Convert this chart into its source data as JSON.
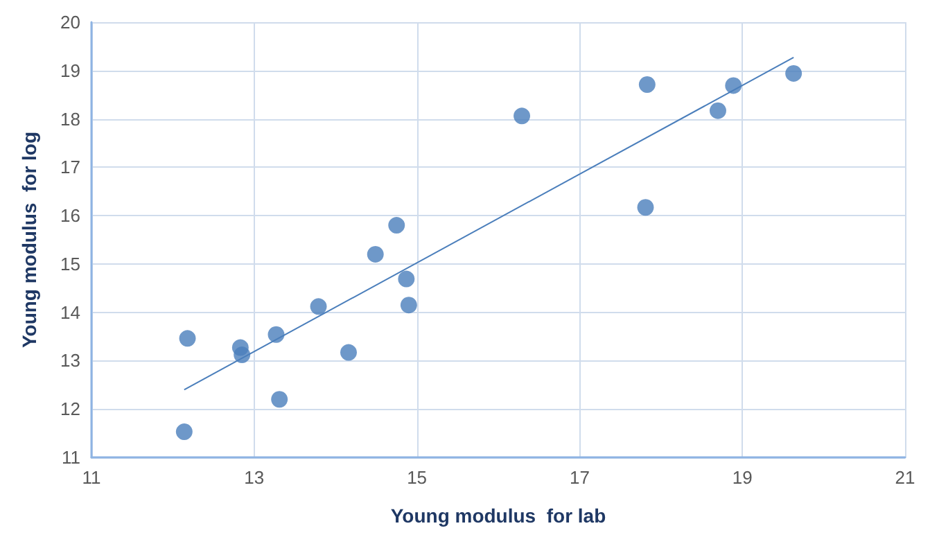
{
  "chart_data": {
    "type": "scatter",
    "xlabel": "Young modulus  for lab",
    "ylabel": "Young modulus  for log",
    "xlim": [
      11,
      21
    ],
    "xticks": [
      11,
      13,
      15,
      17,
      19,
      21
    ],
    "ylim": [
      11,
      20
    ],
    "yticks": [
      11,
      12,
      13,
      14,
      15,
      16,
      17,
      18,
      19,
      20
    ],
    "grid": true,
    "marker": "circle",
    "series": [
      {
        "color": "#4a7ebb",
        "x": [
          12.14,
          12.18,
          12.83,
          12.85,
          13.27,
          13.31,
          13.79,
          14.16,
          14.49,
          14.75,
          14.87,
          14.9,
          16.29,
          17.83,
          17.81,
          18.7,
          18.89,
          19.63
        ],
        "values": [
          11.53,
          13.46,
          13.27,
          13.12,
          13.54,
          12.2,
          14.12,
          13.17,
          15.2,
          15.8,
          14.69,
          14.15,
          18.06,
          18.71,
          16.17,
          18.17,
          18.69,
          18.94
        ]
      },
      {
        "type": "line",
        "color": "#4a7ebb",
        "marker": "none",
        "x": [
          12.14,
          19.63
        ],
        "values": [
          12.4,
          19.27
        ]
      }
    ]
  }
}
